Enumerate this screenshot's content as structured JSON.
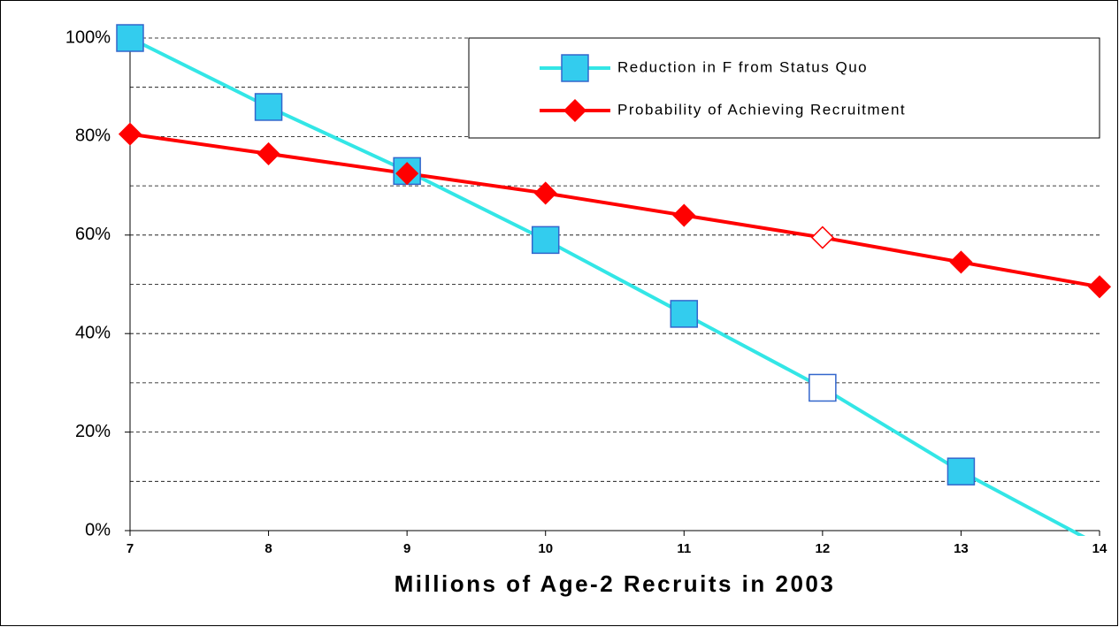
{
  "chart_data": {
    "type": "line",
    "x": [
      7,
      8,
      9,
      10,
      11,
      12,
      13,
      14
    ],
    "series": [
      {
        "name": "Reduction in F from  Status Quo",
        "color": "#33e6e6",
        "marker": "square",
        "marker_fill": "#33ccee",
        "marker_edge": "#3366cc",
        "values": [
          100,
          86,
          73,
          59,
          44,
          29,
          12,
          -3
        ]
      },
      {
        "name": "Probability of Achieving Recruitment",
        "color": "#ff0000",
        "marker": "diamond",
        "marker_fill": "#ff0000",
        "marker_edge": "#ff0000",
        "values": [
          80.5,
          76.5,
          72.5,
          68.5,
          64,
          59.5,
          54.5,
          49.5
        ]
      }
    ],
    "open_marker_index": 5,
    "xlabel": "Millions of Age-2 Recruits in 2003",
    "xlim": [
      7,
      14
    ],
    "xticks": [
      7,
      8,
      9,
      10,
      11,
      12,
      13,
      14
    ],
    "ylim": [
      0,
      100
    ],
    "yticks": [
      {
        "value": 0,
        "label": "0%"
      },
      {
        "value": 20,
        "label": "20%"
      },
      {
        "value": 40,
        "label": "40%"
      },
      {
        "value": 60,
        "label": "60%"
      },
      {
        "value": 80,
        "label": "80%"
      },
      {
        "value": 100,
        "label": "100%"
      }
    ],
    "minor_yticks": [
      10,
      30,
      50,
      70,
      90
    ],
    "grid": true,
    "legend": "upper right"
  }
}
